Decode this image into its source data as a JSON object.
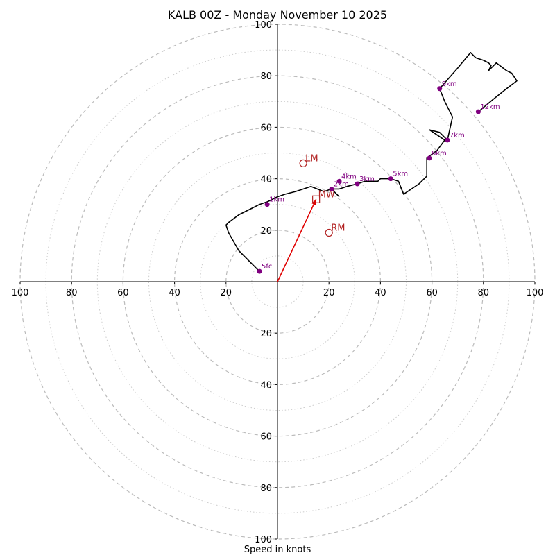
{
  "chart_data": {
    "type": "hodograph",
    "title": "KALB 00Z - Monday November 10 2025",
    "xlabel": "Speed in knots",
    "units": "knots",
    "range": [
      -100,
      100
    ],
    "rings_major": [
      20,
      40,
      60,
      80,
      100
    ],
    "rings_minor": [
      10,
      30,
      50,
      70,
      90
    ],
    "axis_ticks_x": [
      "100",
      "80",
      "60",
      "40",
      "20",
      "20",
      "40",
      "60",
      "80",
      "100"
    ],
    "axis_ticks_y": [
      "100",
      "80",
      "60",
      "40",
      "20",
      "20",
      "40",
      "60",
      "80",
      "100"
    ],
    "trace": [
      [
        -7,
        4
      ],
      [
        -15,
        12
      ],
      [
        -19,
        19
      ],
      [
        -20,
        22
      ],
      [
        -19,
        23
      ],
      [
        -15,
        26
      ],
      [
        -11,
        28
      ],
      [
        -7,
        30
      ],
      [
        -4,
        31
      ],
      [
        -2,
        32
      ],
      [
        0,
        33
      ],
      [
        3,
        34
      ],
      [
        7,
        35
      ],
      [
        13,
        37
      ],
      [
        18,
        35
      ],
      [
        21,
        36
      ],
      [
        24,
        36
      ],
      [
        27,
        37
      ],
      [
        31,
        38
      ],
      [
        34,
        39
      ],
      [
        39,
        39
      ],
      [
        40,
        40
      ],
      [
        42,
        40
      ],
      [
        44,
        40
      ],
      [
        47,
        39
      ],
      [
        49,
        34
      ],
      [
        55,
        38
      ],
      [
        58,
        41
      ],
      [
        58,
        45
      ],
      [
        58,
        48
      ],
      [
        62,
        51
      ],
      [
        65,
        55
      ],
      [
        59,
        59
      ],
      [
        63,
        58
      ],
      [
        66,
        55
      ],
      [
        68,
        64
      ],
      [
        65,
        70
      ],
      [
        63,
        75
      ],
      [
        70,
        83
      ],
      [
        75,
        89
      ],
      [
        77,
        87
      ],
      [
        80,
        86
      ],
      [
        82,
        85
      ],
      [
        83,
        84
      ],
      [
        82,
        82
      ],
      [
        84,
        84
      ],
      [
        85,
        85
      ],
      [
        89,
        82
      ],
      [
        91,
        81
      ],
      [
        93,
        78
      ],
      [
        89,
        75
      ],
      [
        84,
        71
      ],
      [
        78,
        66
      ]
    ],
    "trace_tail": [
      [
        21,
        36
      ],
      [
        24,
        33
      ]
    ],
    "levels": [
      {
        "label": "5fc",
        "u": -7,
        "v": 4
      },
      {
        "label": "1km",
        "u": -4,
        "v": 30
      },
      {
        "label": "2km",
        "u": 21,
        "v": 36
      },
      {
        "label": "3km",
        "u": 31,
        "v": 38
      },
      {
        "label": "4km",
        "u": 24,
        "v": 39
      },
      {
        "label": "5km",
        "u": 44,
        "v": 40
      },
      {
        "label": "6km",
        "u": 59,
        "v": 48
      },
      {
        "label": "7km",
        "u": 66,
        "v": 55
      },
      {
        "label": "9km",
        "u": 63,
        "v": 75
      },
      {
        "label": "12km",
        "u": 78,
        "v": 66
      }
    ],
    "storm_motion": [
      {
        "label": "LM",
        "u": 10,
        "v": 46,
        "marker": "circle"
      },
      {
        "label": "RM",
        "u": 20,
        "v": 19,
        "marker": "circle"
      },
      {
        "label": "MW",
        "u": 15,
        "v": 32,
        "marker": "square"
      }
    ],
    "mean_wind_vector": {
      "u": 15,
      "v": 32
    },
    "colors": {
      "trace": "#000000",
      "level_marker": "#800080",
      "storm_marker": "#b22222",
      "vector": "#e00000",
      "grid": "#bbbbbb"
    }
  }
}
